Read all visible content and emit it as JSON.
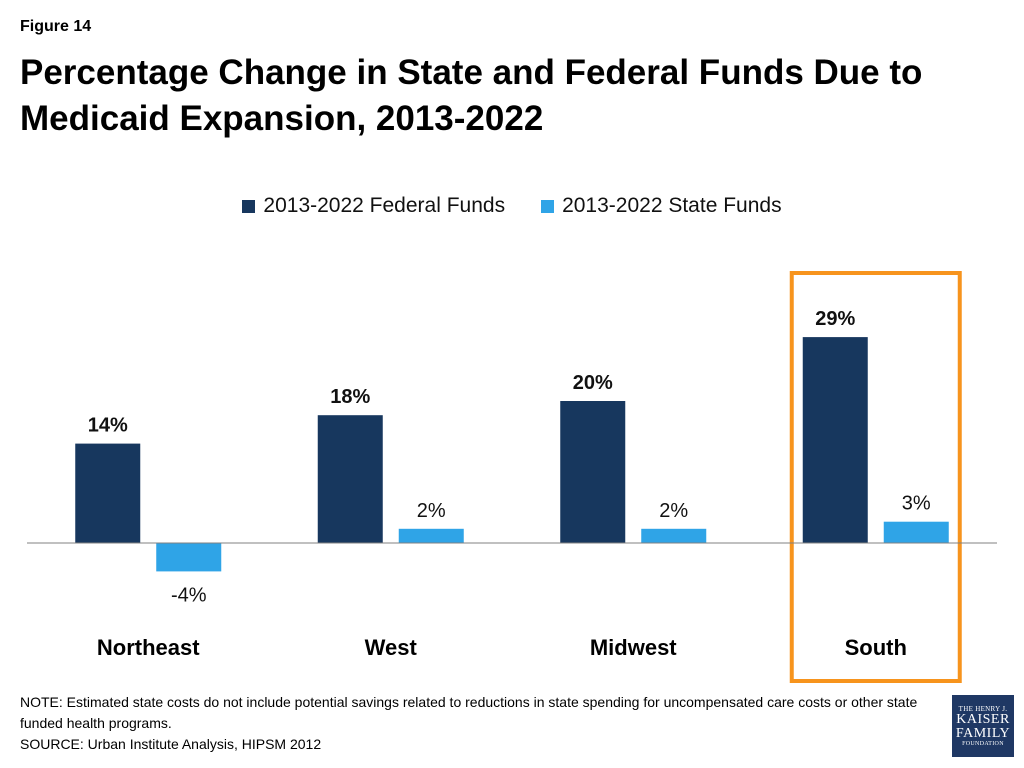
{
  "figure_label": "Figure 14",
  "title": "Percentage Change in State and Federal Funds Due to Medicaid Expansion, 2013-2022",
  "note": "NOTE:  Estimated state costs do not include potential savings related to reductions in state spending for uncompensated care costs or other state funded health programs.",
  "source": "SOURCE: Urban Institute Analysis, HIPSM 2012",
  "logo": {
    "line1": "THE HENRY J.",
    "line2": "KAISER",
    "line3": "FAMILY",
    "line4": "FOUNDATION"
  },
  "colors": {
    "federal": "#17375e",
    "state": "#2fa4e7",
    "highlight": "#f7941d",
    "axis": "#808080"
  },
  "chart_data": {
    "type": "bar",
    "categories": [
      "Northeast",
      "West",
      "Midwest",
      "South"
    ],
    "series": [
      {
        "name": "2013-2022 Federal Funds",
        "values": [
          14,
          18,
          20,
          29
        ],
        "labels": [
          "14%",
          "18%",
          "20%",
          "29%"
        ]
      },
      {
        "name": "2013-2022 State Funds",
        "values": [
          -4,
          2,
          2,
          3
        ],
        "labels": [
          "-4%",
          "2%",
          "2%",
          "3%"
        ]
      }
    ],
    "title": "Percentage Change in State and Federal Funds Due to Medicaid Expansion, 2013-2022",
    "xlabel": "",
    "ylabel": "",
    "ylim": [
      -4,
      29
    ],
    "grid": false,
    "legend": "top-center",
    "highlighted_category": "South"
  }
}
